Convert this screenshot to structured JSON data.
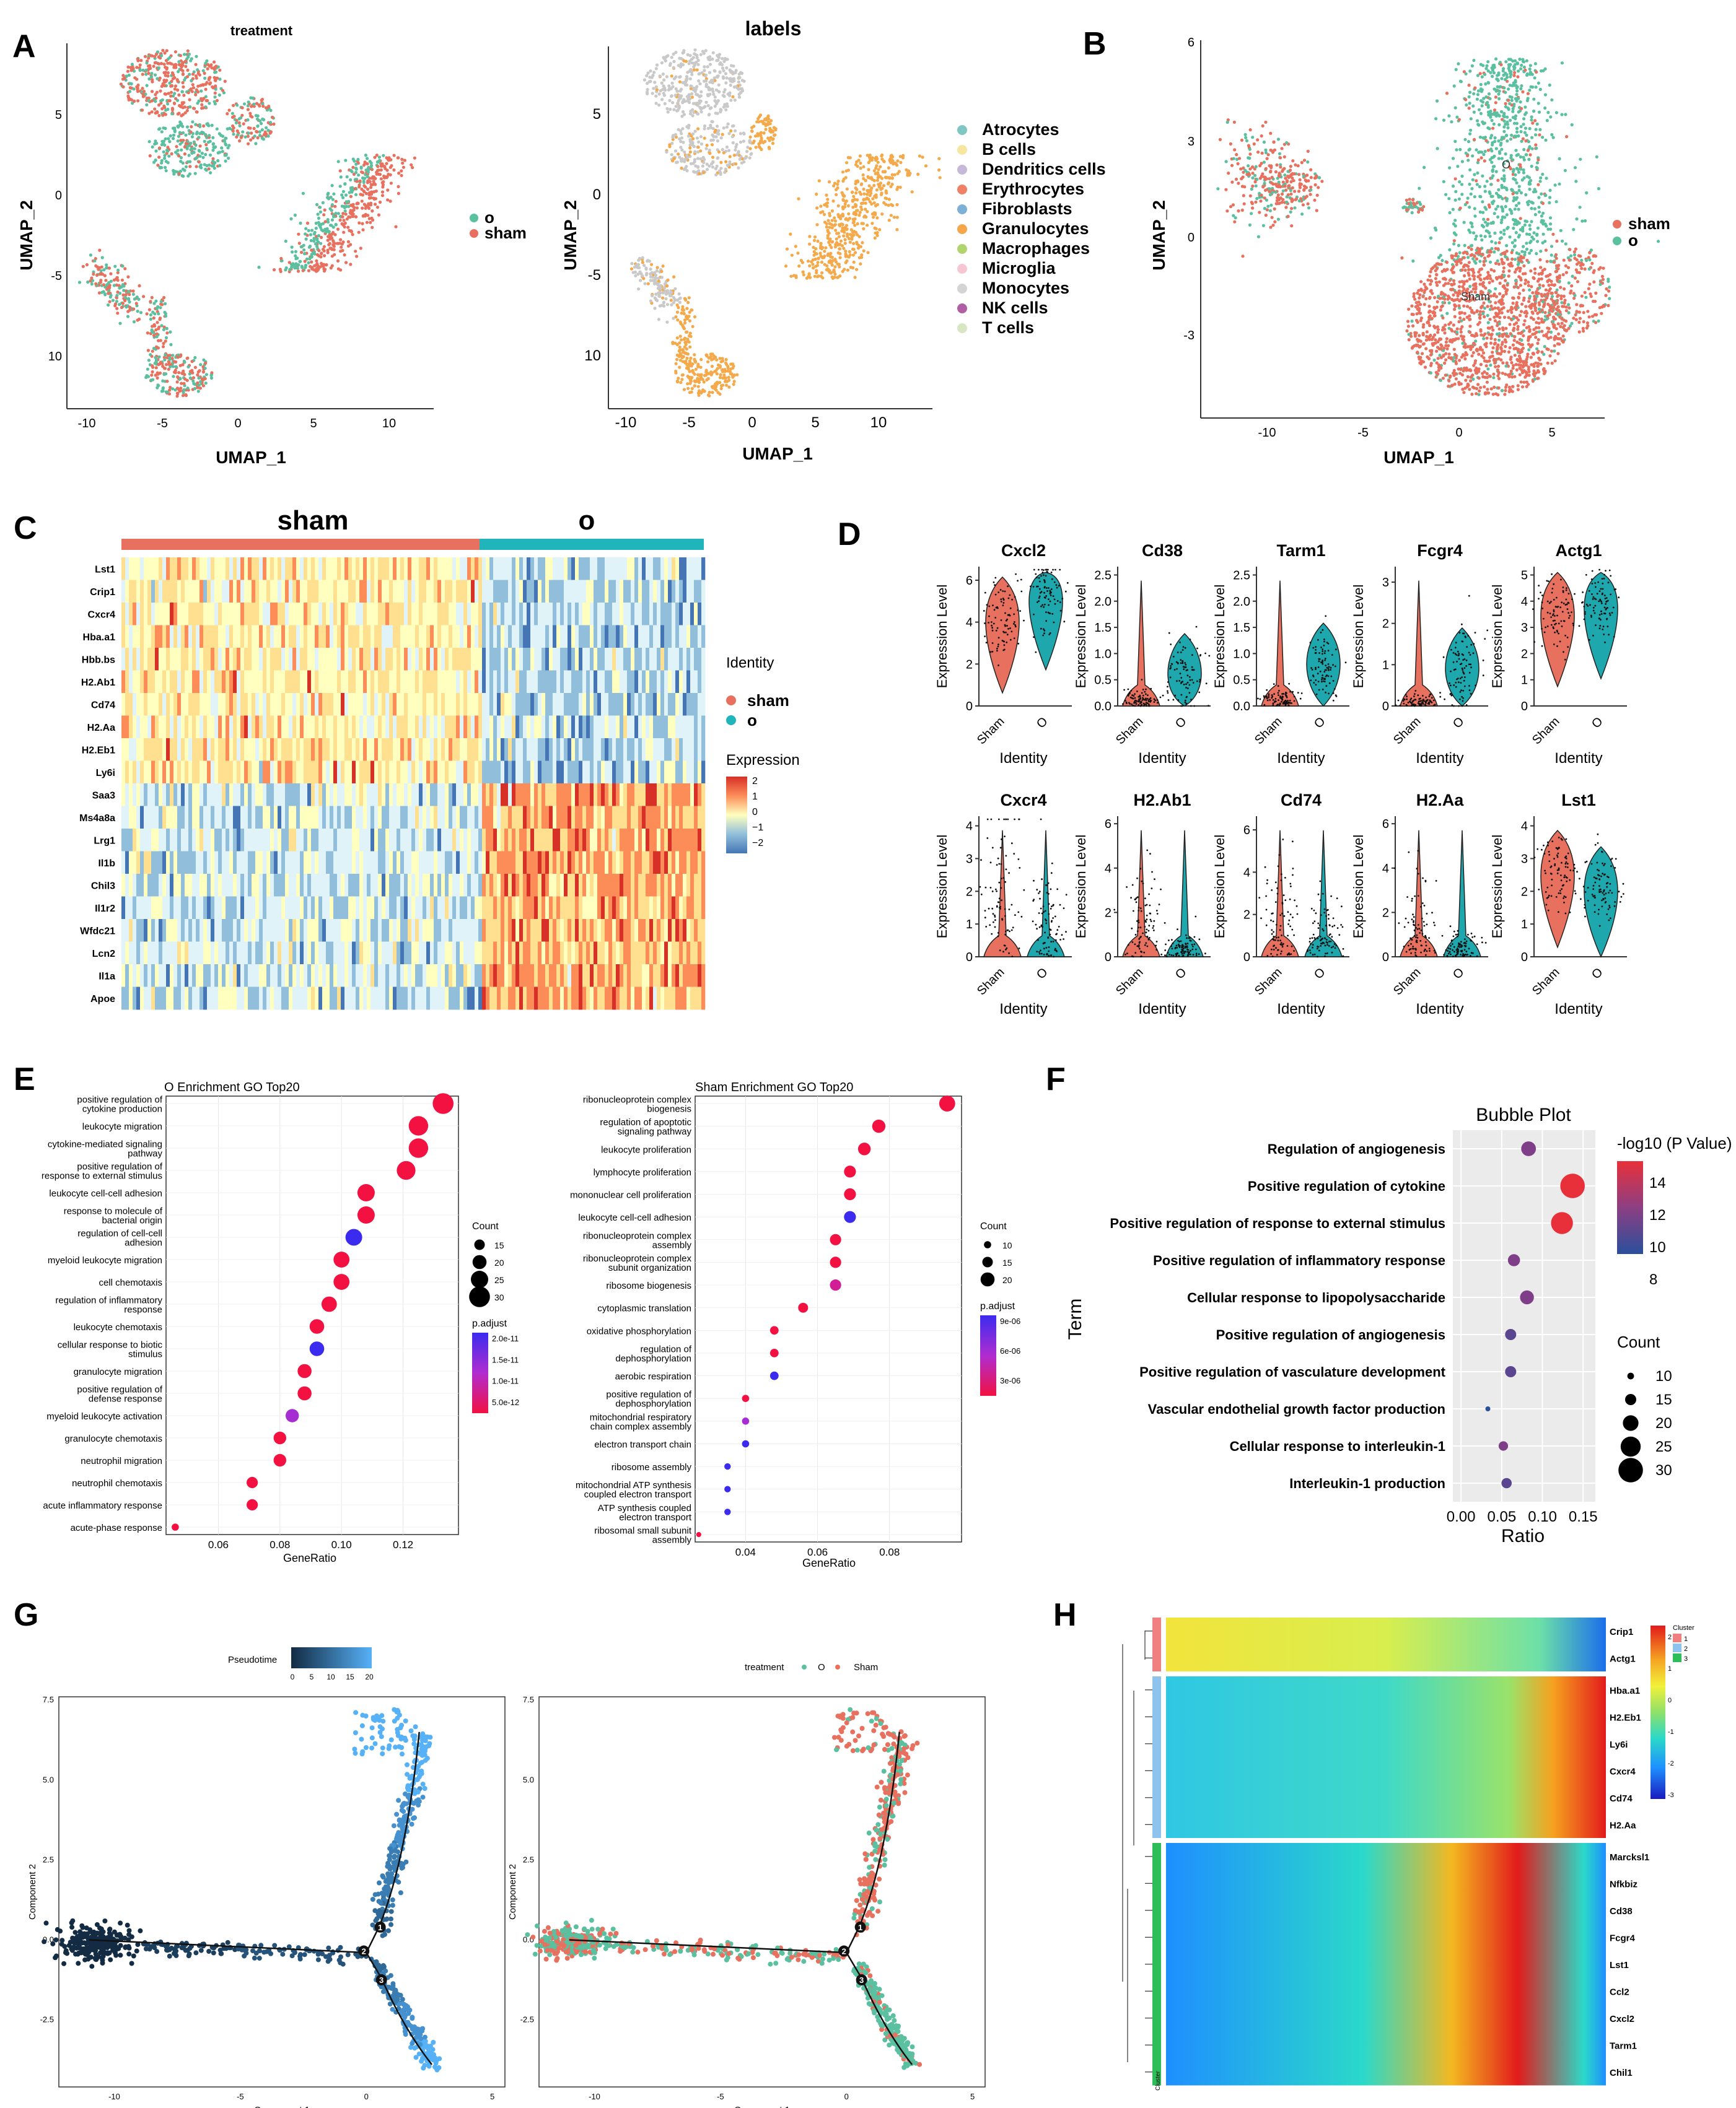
{
  "colors": {
    "sham": "#E8705E",
    "o": "#5BC0A0",
    "teal": "#1FB5BA",
    "orange": "#F4A94B",
    "grey": "#C9C9C9"
  },
  "panels": {
    "A": {
      "letter": "A",
      "left_title": "treatment",
      "right_title": "labels",
      "xlabel": "UMAP_1",
      "ylabel": "UMAP_2",
      "xticks": [
        "-10",
        "-5",
        "0",
        "5",
        "10"
      ],
      "yticks_left": [
        "5",
        "0",
        "-5",
        "10"
      ],
      "yticks_right": [
        "5",
        "0",
        "-5",
        "10"
      ],
      "legend_treatment": [
        "o",
        "sham"
      ],
      "legend_labels": [
        {
          "name": "Atrocytes",
          "color": "#7FC7C0"
        },
        {
          "name": "B cells",
          "color": "#F7E6A0"
        },
        {
          "name": "Dendritics cells",
          "color": "#C5B8D9"
        },
        {
          "name": "Erythrocytes",
          "color": "#EE8166"
        },
        {
          "name": "Fibroblasts",
          "color": "#7EAFD5"
        },
        {
          "name": "Granulocytes",
          "color": "#F5A54A"
        },
        {
          "name": "Macrophages",
          "color": "#B2D46E"
        },
        {
          "name": "Microglia",
          "color": "#F6C6D3"
        },
        {
          "name": "Monocytes",
          "color": "#D4D4D4"
        },
        {
          "name": "NK cells",
          "color": "#B05FA5"
        },
        {
          "name": "T cells",
          "color": "#D8E6C4"
        }
      ]
    },
    "B": {
      "letter": "B",
      "xlabel": "UMAP_1",
      "ylabel": "UMAP_2",
      "xticks": [
        "-10",
        "-5",
        "0",
        "5"
      ],
      "yticks": [
        "6",
        "3",
        "0",
        "-3"
      ],
      "legend": [
        "sham",
        "o"
      ],
      "cluster_labels": [
        "O",
        "Sham"
      ]
    },
    "C": {
      "letter": "C",
      "group_labels": [
        "sham",
        "o"
      ],
      "genes": [
        "Lst1",
        "Crip1",
        "Cxcr4",
        "Hba.a1",
        "Hbb.bs",
        "H2.Ab1",
        "Cd74",
        "H2.Aa",
        "H2.Eb1",
        "Ly6i",
        "Saa3",
        "Ms4a8a",
        "Lrg1",
        "Il1b",
        "Chil3",
        "Il1r2",
        "Wfdc21",
        "Lcn2",
        "Il1a",
        "Apoe"
      ],
      "legend_identity_title": "Identity",
      "legend_identity": [
        "sham",
        "o"
      ],
      "legend_expr_title": "Expression",
      "legend_expr_ticks": [
        "2",
        "1",
        "0",
        "−1",
        "−2"
      ]
    },
    "D": {
      "letter": "D",
      "ylabel": "Expression Level",
      "xlabel": "Identity",
      "groups": [
        "Sham",
        "O"
      ],
      "genes": [
        {
          "name": "Cxcl2",
          "ticks": [
            "6",
            "4",
            "2",
            "0"
          ],
          "ymax": 6.5,
          "sham": 4.2,
          "o": 5.3,
          "zs": false,
          "zo": false
        },
        {
          "name": "Cd38",
          "ticks": [
            "2.5",
            "2.0",
            "1.5",
            "1.0",
            "0.5",
            "0.0"
          ],
          "ymax": 2.6,
          "sham": 0.1,
          "o": 0.6,
          "zs": true,
          "zo": false
        },
        {
          "name": "Tarm1",
          "ticks": [
            "2.5",
            "2.0",
            "1.5",
            "1.0",
            "0.5",
            "0.0"
          ],
          "ymax": 2.6,
          "sham": 0.1,
          "o": 0.8,
          "zs": true,
          "zo": false
        },
        {
          "name": "Fcgr4",
          "ticks": [
            "3",
            "2",
            "1",
            "0"
          ],
          "ymax": 3.3,
          "sham": 0.1,
          "o": 0.9,
          "zs": true,
          "zo": false
        },
        {
          "name": "Actg1",
          "ticks": [
            "5",
            "4",
            "3",
            "2",
            "1",
            "0"
          ],
          "ymax": 5.2,
          "sham": 3.6,
          "o": 3.9,
          "zs": false,
          "zo": false
        },
        {
          "name": "Cxcr4",
          "ticks": [
            "4",
            "3",
            "2",
            "1",
            "0"
          ],
          "ymax": 4.2,
          "sham": 1.5,
          "o": 0.8,
          "zs": true,
          "zo": true
        },
        {
          "name": "H2.Ab1",
          "ticks": [
            "6",
            "4",
            "2",
            "0"
          ],
          "ymax": 6.2,
          "sham": 1.2,
          "o": 0.3,
          "zs": true,
          "zo": true
        },
        {
          "name": "Cd74",
          "ticks": [
            "6",
            "4",
            "2",
            "0"
          ],
          "ymax": 6.5,
          "sham": 1.5,
          "o": 0.8,
          "zs": true,
          "zo": true
        },
        {
          "name": "H2.Aa",
          "ticks": [
            "6",
            "4",
            "2",
            "0"
          ],
          "ymax": 6.2,
          "sham": 1.1,
          "o": 0.3,
          "zs": true,
          "zo": true
        },
        {
          "name": "Lst1",
          "ticks": [
            "4",
            "3",
            "2",
            "1",
            "0"
          ],
          "ymax": 4.2,
          "sham": 2.6,
          "o": 2.1,
          "zs": false,
          "zo": false
        }
      ]
    },
    "E": {
      "letter": "E",
      "left": {
        "title": "O Enrichment GO Top20",
        "xlabel": "GeneRatio",
        "xticks": [
          "0.06",
          "0.08",
          "0.10",
          "0.12"
        ],
        "xmin": 0.043,
        "xmax": 0.138,
        "terms": [
          {
            "label": [
              "positive regulation of",
              "cytokine production"
            ],
            "x": 0.133,
            "count": 30,
            "p": 0.1
          },
          {
            "label": [
              "leukocyte migration"
            ],
            "x": 0.125,
            "count": 28,
            "p": 0.1
          },
          {
            "label": [
              "cytokine-mediated signaling",
              "pathway"
            ],
            "x": 0.125,
            "count": 28,
            "p": 0.1
          },
          {
            "label": [
              "positive regulation of",
              "response to external stimulus"
            ],
            "x": 0.121,
            "count": 27,
            "p": 0.1
          },
          {
            "label": [
              "leukocyte cell-cell adhesion"
            ],
            "x": 0.108,
            "count": 25,
            "p": 0.1
          },
          {
            "label": [
              "response to molecule of",
              "bacterial origin"
            ],
            "x": 0.108,
            "count": 25,
            "p": 0.1
          },
          {
            "label": [
              "regulation of cell-cell",
              "adhesion"
            ],
            "x": 0.104,
            "count": 24,
            "p": 2.0
          },
          {
            "label": [
              "myeloid leukocyte migration"
            ],
            "x": 0.1,
            "count": 23,
            "p": 0.1
          },
          {
            "label": [
              "cell chemotaxis"
            ],
            "x": 0.1,
            "count": 23,
            "p": 0.1
          },
          {
            "label": [
              "regulation of inflammatory",
              "response"
            ],
            "x": 0.096,
            "count": 22,
            "p": 0.1
          },
          {
            "label": [
              "leukocyte chemotaxis"
            ],
            "x": 0.092,
            "count": 21,
            "p": 0.1
          },
          {
            "label": [
              "cellular response to biotic",
              "stimulus"
            ],
            "x": 0.092,
            "count": 21,
            "p": 2.0
          },
          {
            "label": [
              "granulocyte migration"
            ],
            "x": 0.088,
            "count": 20,
            "p": 0.1
          },
          {
            "label": [
              "positive regulation of",
              "defense response"
            ],
            "x": 0.088,
            "count": 20,
            "p": 0.1
          },
          {
            "label": [
              "myeloid leukocyte activation"
            ],
            "x": 0.084,
            "count": 19,
            "p": 1.1
          },
          {
            "label": [
              "granulocyte chemotaxis"
            ],
            "x": 0.08,
            "count": 18,
            "p": 0.1
          },
          {
            "label": [
              "neutrophil migration"
            ],
            "x": 0.08,
            "count": 18,
            "p": 0.1
          },
          {
            "label": [
              "neutrophil chemotaxis"
            ],
            "x": 0.071,
            "count": 16,
            "p": 0.1
          },
          {
            "label": [
              "acute inflammatory response"
            ],
            "x": 0.071,
            "count": 16,
            "p": 0.1
          },
          {
            "label": [
              "acute-phase response"
            ],
            "x": 0.046,
            "count": 10,
            "p": 0.1
          }
        ],
        "count_title": "Count",
        "count_ticks": [
          15,
          20,
          25,
          30
        ],
        "p_title": "p.adjust",
        "p_ticks": [
          "2.0e-11",
          "1.5e-11",
          "1.0e-11",
          "5.0e-12"
        ]
      },
      "right": {
        "title": "Sham Enrichment GO Top20",
        "xlabel": "GeneRatio",
        "xticks": [
          "0.04",
          "0.06",
          "0.08"
        ],
        "xmin": 0.026,
        "xmax": 0.1,
        "terms": [
          {
            "label": [
              "ribonucleoprotein complex",
              "biogenesis"
            ],
            "x": 0.096,
            "count": 23,
            "p": 0.1
          },
          {
            "label": [
              "regulation of apoptotic",
              "signaling pathway"
            ],
            "x": 0.077,
            "count": 19,
            "p": 0.1
          },
          {
            "label": [
              "leukocyte proliferation"
            ],
            "x": 0.073,
            "count": 18,
            "p": 0.1
          },
          {
            "label": [
              "lymphocyte proliferation"
            ],
            "x": 0.069,
            "count": 17,
            "p": 0.1
          },
          {
            "label": [
              "mononuclear cell proliferation"
            ],
            "x": 0.069,
            "count": 17,
            "p": 0.1
          },
          {
            "label": [
              "leukocyte cell-cell adhesion"
            ],
            "x": 0.069,
            "count": 17,
            "p": 1.0
          },
          {
            "label": [
              "ribonucleoprotein complex",
              "assembly"
            ],
            "x": 0.065,
            "count": 16,
            "p": 0.1
          },
          {
            "label": [
              "ribonucleoprotein complex",
              "subunit organization"
            ],
            "x": 0.065,
            "count": 16,
            "p": 0.1
          },
          {
            "label": [
              "ribosome biogenesis"
            ],
            "x": 0.065,
            "count": 16,
            "p": 0.3
          },
          {
            "label": [
              "cytoplasmic translation"
            ],
            "x": 0.056,
            "count": 14,
            "p": 0.1
          },
          {
            "label": [
              "oxidative phosphorylation"
            ],
            "x": 0.048,
            "count": 12,
            "p": 0.1
          },
          {
            "label": [
              "regulation of",
              "dephosphorylation"
            ],
            "x": 0.048,
            "count": 12,
            "p": 0.1
          },
          {
            "label": [
              "aerobic respiration"
            ],
            "x": 0.048,
            "count": 12,
            "p": 1.0
          },
          {
            "label": [
              "positive regulation of",
              "dephosphorylation"
            ],
            "x": 0.04,
            "count": 10,
            "p": 0.1
          },
          {
            "label": [
              "mitochondrial respiratory",
              "chain complex assembly"
            ],
            "x": 0.04,
            "count": 10,
            "p": 0.75
          },
          {
            "label": [
              "electron transport chain"
            ],
            "x": 0.04,
            "count": 10,
            "p": 0.95
          },
          {
            "label": [
              "ribosome assembly"
            ],
            "x": 0.035,
            "count": 9,
            "p": 0.85
          },
          {
            "label": [
              "mitochondrial ATP synthesis",
              "coupled electron transport"
            ],
            "x": 0.035,
            "count": 9,
            "p": 0.85
          },
          {
            "label": [
              "ATP synthesis coupled",
              "electron transport"
            ],
            "x": 0.035,
            "count": 9,
            "p": 0.85
          },
          {
            "label": [
              "ribosomal small subunit",
              "assembly"
            ],
            "x": 0.027,
            "count": 7,
            "p": 0.1
          }
        ],
        "count_title": "Count",
        "count_ticks": [
          10,
          15,
          20
        ],
        "p_title": "p.adjust",
        "p_ticks": [
          "9e-06",
          "6e-06",
          "3e-06"
        ]
      }
    },
    "F": {
      "letter": "F",
      "title": "Bubble Plot",
      "xlabel": "Ratio",
      "ylabel": "Term",
      "xticks": [
        "0.00",
        "0.05",
        "0.10",
        "0.15"
      ],
      "xmin": -0.01,
      "xmax": 0.165,
      "terms": [
        {
          "label": "Regulation of angiogenesis",
          "x": 0.083,
          "count": 19,
          "p": 10.2
        },
        {
          "label": "Positive regulation of cytokine",
          "x": 0.137,
          "count": 30,
          "p": 15.0
        },
        {
          "label": "Positive regulation of response to external stimulus",
          "x": 0.124,
          "count": 27,
          "p": 14.3
        },
        {
          "label": "Positive regulation of inflammatory response",
          "x": 0.065,
          "count": 16,
          "p": 10.2
        },
        {
          "label": "Cellular response to lipopolysaccharide",
          "x": 0.081,
          "count": 18,
          "p": 10.0
        },
        {
          "label": "Positive regulation of angiogenesis",
          "x": 0.061,
          "count": 15,
          "p": 8.5
        },
        {
          "label": "Positive regulation of vasculature development",
          "x": 0.061,
          "count": 15,
          "p": 8.5
        },
        {
          "label": "Vascular endothelial growth factor production",
          "x": 0.033,
          "count": 8,
          "p": 7.8
        },
        {
          "label": "Cellular response to interleukin-1",
          "x": 0.052,
          "count": 13,
          "p": 9.6
        },
        {
          "label": "Interleukin-1 production",
          "x": 0.056,
          "count": 14,
          "p": 8.8
        }
      ],
      "color_title": "-log10 (P Value)",
      "color_ticks": [
        "14",
        "12",
        "10",
        "8"
      ],
      "count_title": "Count",
      "count_ticks": [
        10,
        15,
        20,
        25,
        30
      ]
    },
    "G": {
      "letter": "G",
      "left": {
        "legend_title": "Pseudotime",
        "legend_ticks": [
          "0",
          "5",
          "10",
          "15",
          "20"
        ]
      },
      "right": {
        "legend_title": "treatment",
        "legend_items": [
          "O",
          "Sham"
        ]
      },
      "xlabel": "Component 1",
      "ylabel": "Component 2",
      "xticks": [
        "-10",
        "-5",
        "0",
        "5"
      ],
      "yticks": [
        "7.5",
        "5.0",
        "2.5",
        "0.0",
        "-2.5"
      ],
      "nodes": [
        "1",
        "2",
        "3"
      ]
    },
    "H": {
      "letter": "H",
      "genes": [
        "Crip1",
        "Actg1",
        "Hba.a1",
        "H2.Eb1",
        "Ly6i",
        "Cxcr4",
        "Cd74",
        "H2.Aa",
        "Marcksl1",
        "Nfkbiz",
        "Cd38",
        "Fcgr4",
        "Lst1",
        "Ccl2",
        "Cxcl2",
        "Tarm1",
        "Chil1"
      ],
      "clusters": [
        1,
        1,
        2,
        2,
        2,
        2,
        2,
        2,
        3,
        3,
        3,
        3,
        3,
        3,
        3,
        3,
        3
      ],
      "legend_ticks": [
        "2",
        "1",
        "0",
        "-1",
        "-2",
        "-3"
      ],
      "cluster_title": "Cluster",
      "cluster_items": [
        "1",
        "2",
        "3"
      ],
      "side_label": "Cluster"
    }
  }
}
